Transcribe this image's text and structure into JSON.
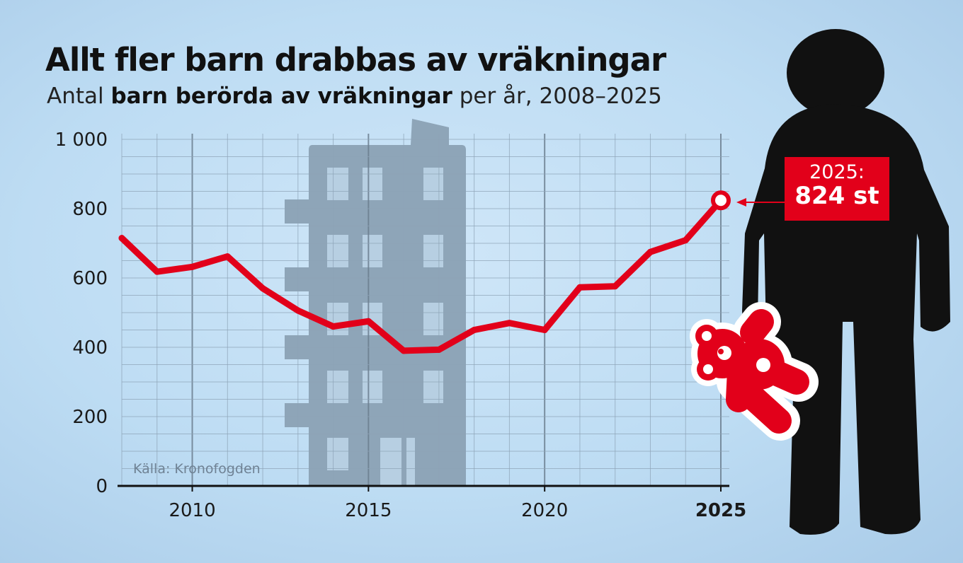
{
  "title": "Allt fler barn drabbas av vräkningar",
  "subtitle": {
    "prefix": "Antal ",
    "bold": "barn berörda av vräkningar",
    "suffix": " per år, 2008–2025"
  },
  "source": "Källa: Kronofogden",
  "callout": {
    "year_label": "2025:",
    "value_label": "824 st"
  },
  "colors": {
    "line": "#e2001a",
    "silhouette": "#111111",
    "building": "#8ea5b8",
    "grid": "#8da3b6",
    "gridMajor": "#6c7f90"
  },
  "icons": [
    "building-silhouette",
    "person-silhouette",
    "teddy-bear-icon"
  ],
  "chart_data": {
    "type": "line",
    "title": "Allt fler barn drabbas av vräkningar",
    "xlabel": "",
    "ylabel": "",
    "x": [
      2008,
      2009,
      2010,
      2011,
      2012,
      2013,
      2014,
      2015,
      2016,
      2017,
      2018,
      2019,
      2020,
      2021,
      2022,
      2023,
      2024,
      2025
    ],
    "series": [
      {
        "values": [
          715,
          618,
          632,
          662,
          570,
          506,
          460,
          475,
          390,
          393,
          450,
          470,
          450,
          573,
          576,
          675,
          709,
          824
        ]
      }
    ],
    "xlim": [
      2008,
      2025
    ],
    "ylim": [
      0,
      1000
    ],
    "yticks": [
      0,
      200,
      400,
      600,
      800,
      1000
    ],
    "ytick_labels": [
      "0",
      "200",
      "400",
      "600",
      "800",
      "1 000"
    ],
    "xticks": [
      2010,
      2015,
      2020,
      2025
    ],
    "xtick_labels": [
      "2010",
      "2015",
      "2020",
      "2025"
    ],
    "highlight": {
      "x": 2025,
      "y": 824
    },
    "grid": true
  }
}
